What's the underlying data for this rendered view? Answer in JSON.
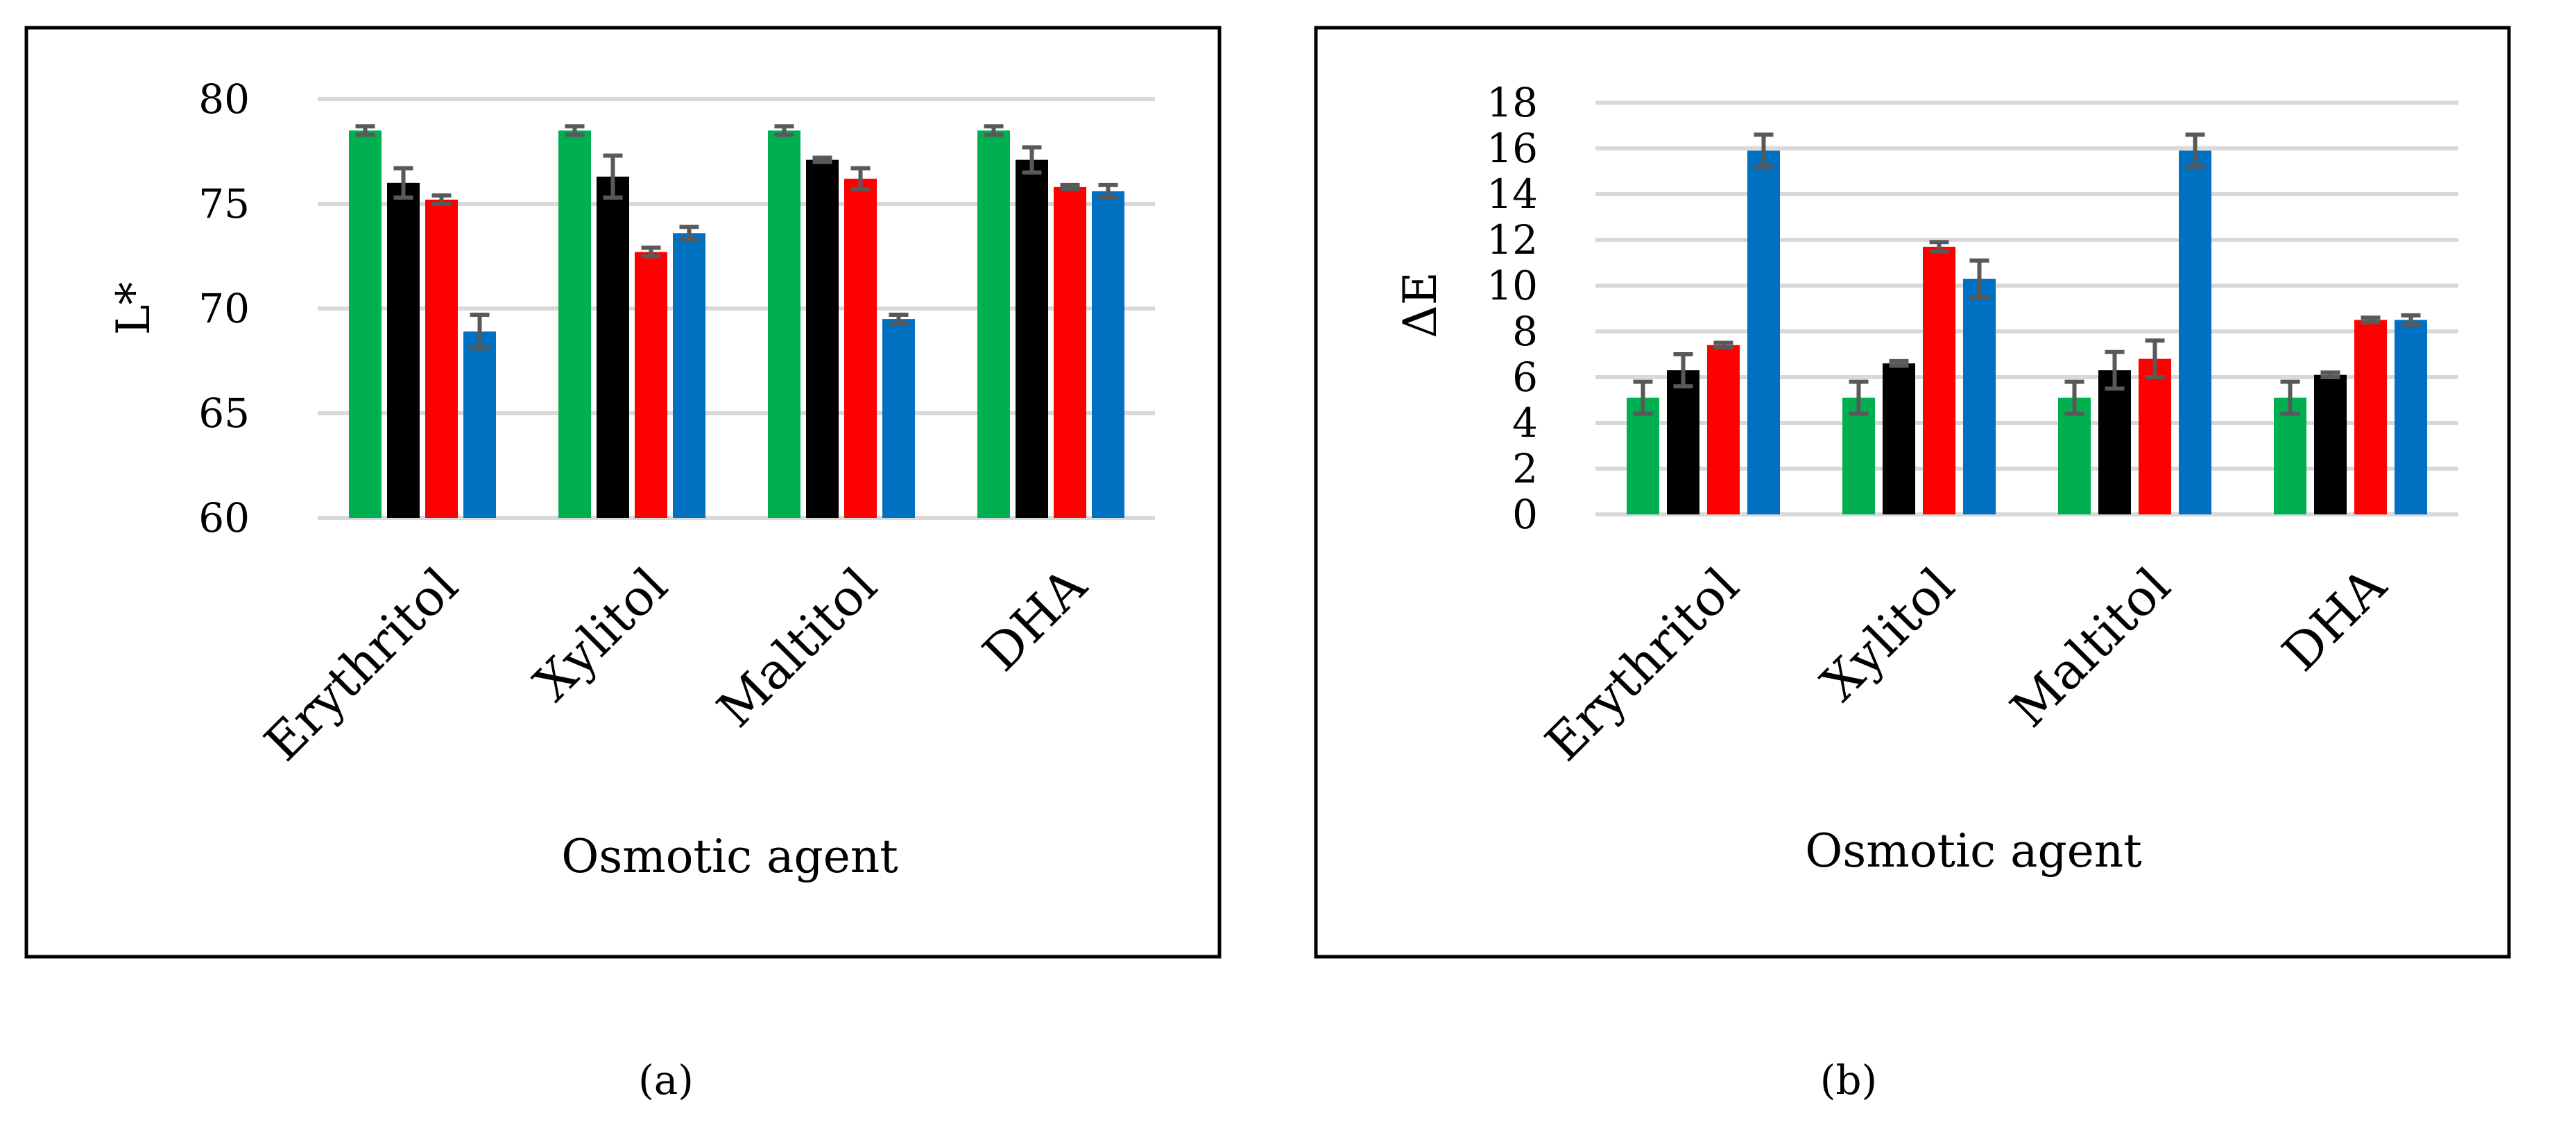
{
  "chart_data": [
    {
      "type": "bar",
      "panel": "(a)",
      "xlabel": "Osmotic agent",
      "ylabel": "L*",
      "ylim": [
        60,
        80
      ],
      "yticks": [
        60,
        65,
        70,
        75,
        80
      ],
      "grid": true,
      "categories": [
        "Erythritol",
        "Xylitol",
        "Maltitol",
        "DHA"
      ],
      "series": [
        {
          "color": "#00b050",
          "values": [
            78.5,
            78.5,
            78.5,
            78.5
          ],
          "errors": [
            0.2,
            0.2,
            0.2,
            0.2
          ]
        },
        {
          "color": "#000000",
          "values": [
            76.0,
            76.3,
            77.1,
            77.1
          ],
          "errors": [
            0.7,
            1.0,
            0.1,
            0.6
          ]
        },
        {
          "color": "#ff0000",
          "values": [
            75.2,
            72.7,
            76.2,
            75.8
          ],
          "errors": [
            0.2,
            0.2,
            0.5,
            0.1
          ]
        },
        {
          "color": "#0070c0",
          "values": [
            68.9,
            73.6,
            69.5,
            75.6
          ],
          "errors": [
            0.8,
            0.3,
            0.2,
            0.3
          ]
        }
      ]
    },
    {
      "type": "bar",
      "panel": "(b)",
      "xlabel": "Osmotic agent",
      "ylabel": "ΔE",
      "ylim": [
        0,
        18
      ],
      "yticks": [
        0,
        2,
        4,
        6,
        8,
        10,
        12,
        14,
        16,
        18
      ],
      "grid": true,
      "categories": [
        "Erythritol",
        "Xylitol",
        "Maltitol",
        "DHA"
      ],
      "series": [
        {
          "color": "#00b050",
          "values": [
            5.1,
            5.1,
            5.1,
            5.1
          ],
          "errors": [
            0.7,
            0.7,
            0.7,
            0.7
          ]
        },
        {
          "color": "#000000",
          "values": [
            6.3,
            6.6,
            6.3,
            6.1
          ],
          "errors": [
            0.7,
            0.1,
            0.8,
            0.1
          ]
        },
        {
          "color": "#ff0000",
          "values": [
            7.4,
            11.7,
            6.8,
            8.5
          ],
          "errors": [
            0.1,
            0.2,
            0.8,
            0.1
          ]
        },
        {
          "color": "#0070c0",
          "values": [
            15.9,
            10.3,
            15.9,
            8.5
          ],
          "errors": [
            0.7,
            0.8,
            0.7,
            0.2
          ]
        }
      ]
    }
  ]
}
